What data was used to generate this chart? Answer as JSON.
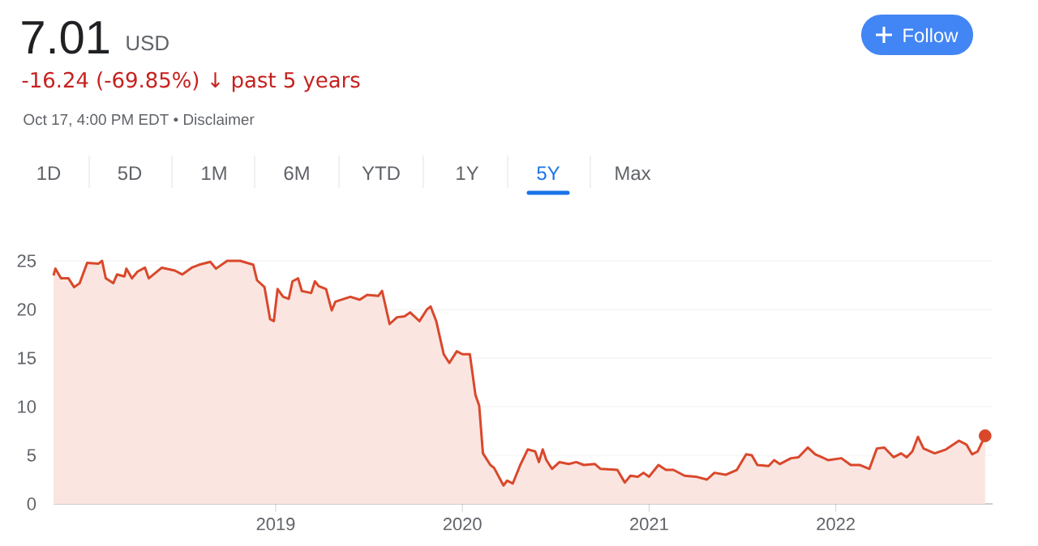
{
  "chart_data": {
    "type": "area",
    "title": "7.01",
    "subtitle": "-16.24 (-69.85%) ↓ past 5 years",
    "annotations": [
      "USD",
      "Oct 17, 4:00 PM EDT • Disclaimer",
      "1D",
      "5D",
      "1M",
      "6M",
      "YTD",
      "1Y",
      "5Y",
      "Max",
      "Follow"
    ],
    "series": [
      {
        "color": "#d9482b",
        "x": [
          2017.81,
          2017.82,
          2017.85,
          2017.89,
          2017.92,
          2017.95,
          2017.99,
          2018.05,
          2018.07,
          2018.09,
          2018.13,
          2018.15,
          2018.19,
          2018.2,
          2018.23,
          2018.26,
          2018.3,
          2018.32,
          2018.39,
          2018.46,
          2018.5,
          2018.55,
          2018.59,
          2018.65,
          2018.68,
          2018.74,
          2018.81,
          2018.88,
          2018.9,
          2018.94,
          2018.97,
          2018.99,
          2019.01,
          2019.04,
          2019.07,
          2019.09,
          2019.12,
          2019.14,
          2019.19,
          2019.21,
          2019.23,
          2019.27,
          2019.3,
          2019.32,
          2019.4,
          2019.45,
          2019.49,
          2019.55,
          2019.57,
          2019.61,
          2019.65,
          2019.69,
          2019.72,
          2019.77,
          2019.81,
          2019.83,
          2019.86,
          2019.9,
          2019.93,
          2019.97,
          2020.0,
          2020.04,
          2020.07,
          2020.09,
          2020.11,
          2020.15,
          2020.17,
          2020.22,
          2020.24,
          2020.27,
          2020.31,
          2020.35,
          2020.39,
          2020.41,
          2020.43,
          2020.45,
          2020.48,
          2020.52,
          2020.57,
          2020.61,
          2020.65,
          2020.71,
          2020.74,
          2020.83,
          2020.87,
          2020.9,
          2020.94,
          2020.97,
          2021.0,
          2021.05,
          2021.09,
          2021.13,
          2021.19,
          2021.25,
          2021.31,
          2021.35,
          2021.41,
          2021.47,
          2021.52,
          2021.55,
          2021.58,
          2021.64,
          2021.67,
          2021.7,
          2021.76,
          2021.8,
          2021.85,
          2021.89,
          2021.96,
          2022.03,
          2022.08,
          2022.13,
          2022.18,
          2022.22,
          2022.26,
          2022.31,
          2022.35,
          2022.38,
          2022.41,
          2022.44,
          2022.47,
          2022.53,
          2022.59,
          2022.66,
          2022.7,
          2022.73,
          2022.76,
          2022.8
        ],
        "values": [
          23.5,
          24.2,
          23.2,
          23.2,
          22.3,
          22.7,
          24.8,
          24.7,
          25.0,
          23.2,
          22.7,
          23.6,
          23.4,
          24.2,
          23.2,
          23.9,
          24.3,
          23.2,
          24.3,
          24.0,
          23.6,
          24.3,
          24.6,
          24.9,
          24.2,
          25.0,
          25.0,
          24.6,
          23.0,
          22.3,
          19.0,
          18.8,
          22.1,
          21.3,
          21.1,
          22.9,
          23.2,
          21.9,
          21.7,
          22.9,
          22.4,
          22.1,
          19.9,
          20.8,
          21.3,
          21.0,
          21.5,
          21.4,
          21.9,
          18.5,
          19.2,
          19.3,
          19.7,
          18.8,
          20.0,
          20.3,
          18.8,
          15.4,
          14.5,
          15.7,
          15.4,
          15.4,
          11.2,
          10.1,
          5.2,
          4.0,
          3.7,
          1.9,
          2.4,
          2.1,
          4.0,
          5.6,
          5.4,
          4.3,
          5.6,
          4.5,
          3.6,
          4.3,
          4.1,
          4.3,
          4.0,
          4.1,
          3.6,
          3.5,
          2.2,
          2.9,
          2.8,
          3.2,
          2.8,
          4.0,
          3.5,
          3.5,
          2.9,
          2.8,
          2.5,
          3.2,
          3.0,
          3.5,
          5.1,
          5.0,
          4.0,
          3.9,
          4.5,
          4.1,
          4.7,
          4.8,
          5.8,
          5.1,
          4.5,
          4.7,
          4.0,
          4.0,
          3.6,
          5.7,
          5.8,
          4.8,
          5.2,
          4.8,
          5.4,
          6.9,
          5.7,
          5.2,
          5.6,
          6.5,
          6.1,
          5.1,
          5.4,
          7.0
        ]
      }
    ],
    "xlim": [
      2017.81,
      2022.84
    ],
    "ylim": [
      0,
      25
    ],
    "xticks": [
      {
        "value": 2019,
        "label": "2019"
      },
      {
        "value": 2020,
        "label": "2020"
      },
      {
        "value": 2021,
        "label": "2021"
      },
      {
        "value": 2022,
        "label": "2022"
      }
    ],
    "yticks": [
      0,
      5,
      10,
      15,
      20,
      25
    ],
    "grid": "y"
  }
}
